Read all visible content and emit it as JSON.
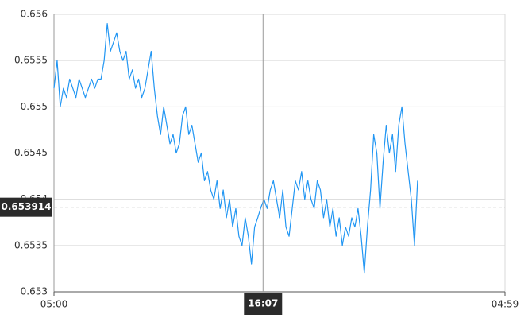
{
  "chart_data": {
    "type": "line",
    "x": [
      "05:00",
      "05:10",
      "05:20",
      "05:30",
      "05:40",
      "05:50",
      "06:00",
      "06:10",
      "06:20",
      "06:30",
      "06:40",
      "06:50",
      "07:00",
      "07:10",
      "07:20",
      "07:30",
      "07:40",
      "07:50",
      "08:00",
      "08:10",
      "08:20",
      "08:30",
      "08:40",
      "08:50",
      "09:00",
      "09:10",
      "09:20",
      "09:30",
      "09:40",
      "09:50",
      "10:00",
      "10:10",
      "10:20",
      "10:30",
      "10:40",
      "10:50",
      "11:00",
      "11:10",
      "11:20",
      "11:30",
      "11:40",
      "11:50",
      "12:00",
      "12:10",
      "12:20",
      "12:30",
      "12:40",
      "12:50",
      "13:00",
      "13:10",
      "13:20",
      "13:30",
      "13:40",
      "13:50",
      "14:00",
      "14:10",
      "14:20",
      "14:30",
      "14:40",
      "14:50",
      "15:00",
      "15:10",
      "15:20",
      "15:30",
      "15:40",
      "15:50",
      "16:00",
      "16:10",
      "16:20",
      "16:30",
      "16:40",
      "16:50",
      "17:00",
      "17:10",
      "17:20",
      "17:30",
      "17:40",
      "17:50",
      "18:00",
      "18:10",
      "18:20",
      "18:30",
      "18:40",
      "18:50",
      "19:00",
      "19:10",
      "19:20",
      "19:30",
      "19:40",
      "19:50",
      "20:00",
      "20:10",
      "20:20",
      "20:30",
      "20:40",
      "20:50",
      "21:00",
      "21:10",
      "21:20",
      "21:30",
      "21:40",
      "21:50",
      "22:00",
      "22:10",
      "22:20",
      "22:30",
      "22:40",
      "22:50",
      "23:00",
      "23:10",
      "23:20",
      "23:30",
      "23:40",
      "23:50",
      "00:00",
      "00:10",
      "00:20"
    ],
    "values": [
      0.6552,
      0.6555,
      0.655,
      0.6552,
      0.6551,
      0.6553,
      0.6552,
      0.6551,
      0.6553,
      0.6552,
      0.6551,
      0.6552,
      0.6553,
      0.6552,
      0.6553,
      0.6553,
      0.6555,
      0.6559,
      0.6556,
      0.6557,
      0.6558,
      0.6556,
      0.6555,
      0.6556,
      0.6553,
      0.6554,
      0.6552,
      0.6553,
      0.6551,
      0.6552,
      0.6554,
      0.6556,
      0.6552,
      0.6549,
      0.6547,
      0.655,
      0.6548,
      0.6546,
      0.6547,
      0.6545,
      0.6546,
      0.6549,
      0.655,
      0.6547,
      0.6548,
      0.6546,
      0.6544,
      0.6545,
      0.6542,
      0.6543,
      0.6541,
      0.654,
      0.6542,
      0.6539,
      0.6541,
      0.6538,
      0.654,
      0.6537,
      0.6539,
      0.6536,
      0.6535,
      0.6538,
      0.6536,
      0.6533,
      0.6537,
      0.6538,
      0.65391,
      0.654,
      0.6539,
      0.6541,
      0.6542,
      0.654,
      0.6538,
      0.6541,
      0.6537,
      0.6536,
      0.6539,
      0.6542,
      0.6541,
      0.6543,
      0.654,
      0.6542,
      0.654,
      0.6539,
      0.6542,
      0.6541,
      0.6538,
      0.654,
      0.6537,
      0.6539,
      0.6536,
      0.6538,
      0.6535,
      0.6537,
      0.6536,
      0.6538,
      0.6537,
      0.6539,
      0.6536,
      0.6532,
      0.6537,
      0.6541,
      0.6547,
      0.6545,
      0.6539,
      0.6544,
      0.6548,
      0.6545,
      0.6547,
      0.6543,
      0.6548,
      0.655,
      0.6546,
      0.6543,
      0.654,
      0.6535,
      0.6542
    ],
    "color": "#2196f3",
    "xlim": [
      "05:00",
      "04:59"
    ],
    "xticks": [
      "05:00",
      "04:59"
    ],
    "ylim": [
      0.653,
      0.656
    ],
    "yticks": [
      0.653,
      0.6535,
      0.654,
      0.6545,
      0.655,
      0.6555,
      0.656
    ],
    "grid": true,
    "crosshair": {
      "x": "16:07",
      "y": 0.653914
    }
  }
}
